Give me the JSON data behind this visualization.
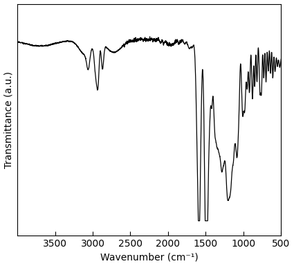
{
  "xlabel": "Wavenumber (cm⁻¹)",
  "ylabel": "Transmittance (a.u.)",
  "xlim": [
    500,
    4000
  ],
  "xticks": [
    500,
    1000,
    1500,
    2000,
    2500,
    3000,
    3500
  ],
  "line_color": "#000000",
  "line_width": 0.9,
  "background_color": "#ffffff",
  "figsize": [
    4.25,
    3.84
  ],
  "dpi": 100
}
